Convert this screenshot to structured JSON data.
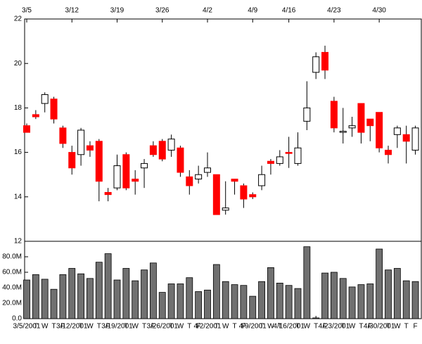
{
  "chart_data": [
    {
      "type": "candlestick",
      "categories": [
        "3/5",
        null,
        null,
        null,
        null,
        "3/12",
        null,
        null,
        null,
        null,
        "3/19",
        null,
        null,
        null,
        null,
        "3/26",
        null,
        null,
        null,
        null,
        "4/2",
        null,
        null,
        null,
        null,
        "4/9",
        null,
        null,
        null,
        "4/16",
        null,
        null,
        null,
        null,
        "4/23",
        null,
        null,
        null,
        null,
        "4/30",
        null,
        null,
        null,
        null
      ],
      "open": [
        17.2,
        17.7,
        18.2,
        18.4,
        17.1,
        16.0,
        15.9,
        16.3,
        16.5,
        14.2,
        14.4,
        15.9,
        14.8,
        15.3,
        16.3,
        16.5,
        16.1,
        16.2,
        14.9,
        14.8,
        15.1,
        15.0,
        13.4,
        14.8,
        14.5,
        14.1,
        14.5,
        15.6,
        15.5,
        16.0,
        15.5,
        17.4,
        19.6,
        20.5,
        18.3,
        16.9,
        17.1,
        18.2,
        17.5,
        17.8,
        16.1,
        16.8,
        16.8,
        16.1
      ],
      "high": [
        17.3,
        17.9,
        18.7,
        18.5,
        17.2,
        16.3,
        17.1,
        16.5,
        16.6,
        14.4,
        15.9,
        16.0,
        15.2,
        15.7,
        16.5,
        16.6,
        16.8,
        16.3,
        15.2,
        15.4,
        16.0,
        15.0,
        14.7,
        14.8,
        14.6,
        14.2,
        15.4,
        15.7,
        16.1,
        16.7,
        16.9,
        19.2,
        20.5,
        20.8,
        18.5,
        18.0,
        17.6,
        18.2,
        17.5,
        17.8,
        16.3,
        17.2,
        17.2,
        17.2
      ],
      "low": [
        16.9,
        17.5,
        17.8,
        17.3,
        16.2,
        15.0,
        15.4,
        15.8,
        13.8,
        13.8,
        14.3,
        14.3,
        14.1,
        14.4,
        15.8,
        15.6,
        15.8,
        14.9,
        14.1,
        14.6,
        14.9,
        13.2,
        13.2,
        14.1,
        13.5,
        13.9,
        14.3,
        15.0,
        15.4,
        15.3,
        15.4,
        17.0,
        19.3,
        19.3,
        16.9,
        16.4,
        16.7,
        16.4,
        16.5,
        16.0,
        15.5,
        16.2,
        15.5,
        15.9
      ],
      "close": [
        16.9,
        17.6,
        18.6,
        17.5,
        16.4,
        15.3,
        17.0,
        16.1,
        14.7,
        14.1,
        15.4,
        14.4,
        14.7,
        15.5,
        15.9,
        15.7,
        16.6,
        15.1,
        14.5,
        15.0,
        15.3,
        13.2,
        13.5,
        14.7,
        13.9,
        14.0,
        15.0,
        15.5,
        15.8,
        15.95,
        16.2,
        18.0,
        20.3,
        19.7,
        17.1,
        16.95,
        17.2,
        16.9,
        17.2,
        16.2,
        15.9,
        17.1,
        16.5,
        17.1
      ],
      "up_color": "#ffffff",
      "down_color": "#ff0000",
      "ylim": [
        12,
        22
      ],
      "yticks": [
        12,
        14,
        16,
        18,
        20,
        22
      ]
    },
    {
      "type": "bar",
      "categories": [
        "3/5/2001",
        "T",
        "W",
        "T",
        "F",
        "3/12/2001",
        "T",
        "W",
        "T",
        "F",
        "3/19/2001",
        "T",
        "W",
        "T",
        "F",
        "3/26/2001",
        "T",
        "W",
        "T",
        "F",
        "4/2/2001",
        "T",
        "W",
        "T",
        "F",
        "4/9/2001",
        "T",
        "W",
        "T",
        "4/16/2001",
        "T",
        "W",
        "T",
        "F",
        "4/23/2001",
        "T",
        "W",
        "T",
        "F",
        "4/30/2001",
        "T",
        "W",
        "T",
        "F"
      ],
      "values": [
        50000000,
        57000000,
        51000000,
        38000000,
        57000000,
        65000000,
        58000000,
        52000000,
        73000000,
        84000000,
        50000000,
        65000000,
        49000000,
        63000000,
        72000000,
        34000000,
        45000000,
        45000000,
        53000000,
        35000000,
        37000000,
        70000000,
        48000000,
        44000000,
        43000000,
        29000000,
        48000000,
        66000000,
        46000000,
        43000000,
        39000000,
        93000000,
        1000000,
        59000000,
        60000000,
        52000000,
        41000000,
        44000000,
        45000000,
        90000000,
        63000000,
        65000000,
        49000000,
        48000000
      ],
      "color": "#707070",
      "ylim": [
        0,
        100000000
      ],
      "yticks": [
        {
          "value": 0,
          "label": "0.0"
        },
        {
          "value": 20000000,
          "label": "20.0M"
        },
        {
          "value": 40000000,
          "label": "40.0M"
        },
        {
          "value": 60000000,
          "label": "60.0M"
        },
        {
          "value": 80000000,
          "label": "80.0M"
        }
      ]
    }
  ]
}
